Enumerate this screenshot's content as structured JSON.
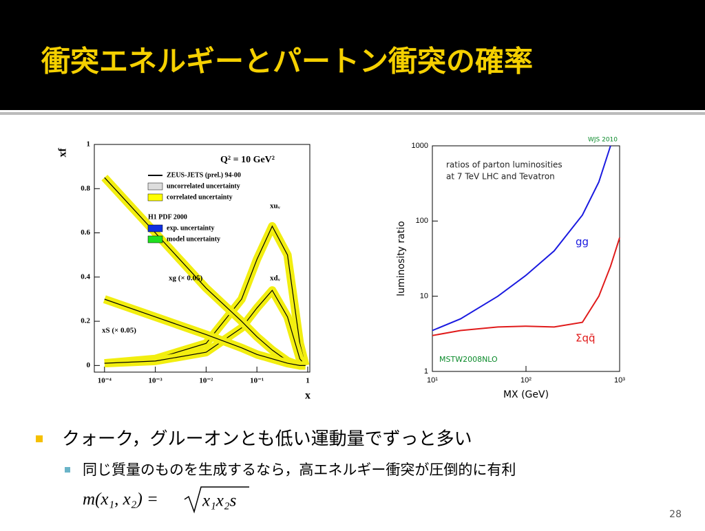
{
  "slide": {
    "title": "衝突エネルギーとパートン衝突の確率",
    "bullet": "クォーク，グルーオンとも低い運動量でずっと多い",
    "sub_bullet": "同じ質量のものを生成するなら，高エネルギー衝突が圧倒的に有利",
    "formula": {
      "lhs": "m(x₁, x₂) =",
      "radicand": "x₁x₂s"
    },
    "page_number": 28
  },
  "chart_data": [
    {
      "type": "line",
      "annotation": "Q² = 10 GeV²",
      "x_label": "x",
      "y_label": "xf",
      "log_x": true,
      "xlim": [
        6.3e-05,
        1.1
      ],
      "ylim": [
        -0.03,
        1
      ],
      "xticks": [
        {
          "value": 0.0001,
          "label": "10⁻⁴"
        },
        {
          "value": 0.001,
          "label": "10⁻³"
        },
        {
          "value": 0.01,
          "label": "10⁻²"
        },
        {
          "value": 0.1,
          "label": "10⁻¹"
        },
        1
      ],
      "yticks": [
        0,
        0.2,
        0.4,
        0.6,
        0.8,
        1
      ],
      "legend": [
        {
          "label": "ZEUS-JETS (prel.) 94-00",
          "color": "#000000"
        },
        {
          "label": "uncorrelated uncertainty",
          "color": "#dddddd"
        },
        {
          "label": "correlated uncertainty",
          "color": "#ffff00"
        },
        {
          "label": "H1 PDF 2000"
        },
        {
          "label": "exp. uncertainty",
          "color": "#1030e0"
        },
        {
          "label": "model uncertainty",
          "color": "#20e020"
        }
      ],
      "x": [
        0.0001,
        0.001,
        0.01,
        0.05,
        0.1,
        0.2,
        0.4,
        0.7,
        0.9
      ],
      "band_color": "#f2ee10",
      "series": [
        {
          "name": "xuᵥ",
          "color": "#000000",
          "values": [
            0.01,
            0.03,
            0.1,
            0.3,
            0.48,
            0.63,
            0.5,
            0.1,
            0
          ]
        },
        {
          "name": "xdᵥ",
          "color": "#000000",
          "values": [
            0.01,
            0.02,
            0.06,
            0.17,
            0.26,
            0.34,
            0.22,
            0.03,
            0
          ]
        },
        {
          "name": "xg (× 0.05)",
          "color": "#000000",
          "values": [
            0.85,
            0.6,
            0.35,
            0.2,
            0.13,
            0.07,
            0.02,
            0,
            0
          ]
        },
        {
          "name": "xS (× 0.05)",
          "color": "#000000",
          "values": [
            0.3,
            0.22,
            0.14,
            0.08,
            0.05,
            0.03,
            0.01,
            0,
            0
          ]
        }
      ]
    },
    {
      "type": "line",
      "annotations": [
        "ratios of parton luminosities",
        "at 7 TeV LHC and Tevatron",
        "MSTW2008NLO",
        "WJS 2010"
      ],
      "x_label": "MX (GeV)",
      "y_label": "luminosity ratio",
      "log_x": true,
      "log_y": true,
      "xlim": [
        10,
        1000
      ],
      "ylim": [
        1,
        1000
      ],
      "xticks": [
        {
          "value": 10,
          "label": "10¹"
        },
        {
          "value": 100,
          "label": "10²"
        },
        {
          "value": 1000,
          "label": "10³"
        }
      ],
      "yticks": [
        1,
        10,
        100,
        1000
      ],
      "x": [
        10,
        20,
        50,
        100,
        200,
        400,
        600,
        800,
        1000
      ],
      "series": [
        {
          "name": "gg",
          "color": "#1a1ae0",
          "values": [
            3.5,
            5,
            10,
            19,
            40,
            120,
            330,
            1000,
            null
          ]
        },
        {
          "name": "Σqq̄",
          "color": "#e01a1a",
          "values": [
            3,
            3.5,
            3.9,
            4,
            3.9,
            4.5,
            10,
            25,
            60
          ]
        }
      ]
    }
  ]
}
